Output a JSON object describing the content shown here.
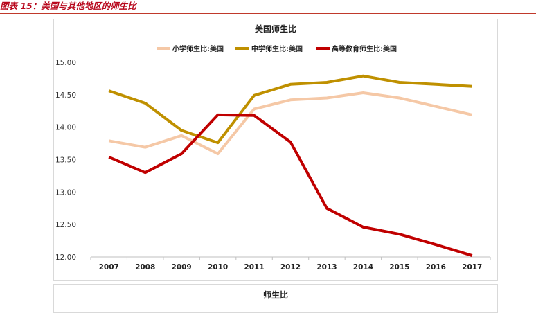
{
  "figure": {
    "caption": "图表 15：美国与其他地区的师生比",
    "second_panel_title": "师生比"
  },
  "colors": {
    "caption": "#b8071c",
    "primary": "#f5c8a6",
    "secondary": "#bf9000",
    "tertiary": "#c00000"
  },
  "chart_data": {
    "type": "line",
    "title": "美国师生比",
    "xlabel": "",
    "ylabel": "",
    "ylim": [
      12.0,
      15.0
    ],
    "yticks": [
      "12.00",
      "12.50",
      "13.00",
      "13.50",
      "14.00",
      "14.50",
      "15.00"
    ],
    "categories": [
      "2007",
      "2008",
      "2009",
      "2010",
      "2011",
      "2012",
      "2013",
      "2014",
      "2015",
      "2016",
      "2017"
    ],
    "grid": false,
    "legend": "top",
    "series": [
      {
        "name": "小学师生比:美国",
        "color": "#f5c8a6",
        "values": [
          13.79,
          13.69,
          13.87,
          13.59,
          14.28,
          14.42,
          14.45,
          14.53,
          14.45,
          14.32,
          14.19
        ]
      },
      {
        "name": "中学师生比:美国",
        "color": "#bf9000",
        "values": [
          14.56,
          14.37,
          13.95,
          13.76,
          14.49,
          14.66,
          14.69,
          14.79,
          14.69,
          14.66,
          14.63
        ]
      },
      {
        "name": "高等教育师生比:美国",
        "color": "#c00000",
        "values": [
          13.54,
          13.3,
          13.59,
          14.19,
          14.18,
          13.77,
          12.75,
          12.46,
          12.35,
          12.19,
          12.02
        ]
      }
    ]
  }
}
